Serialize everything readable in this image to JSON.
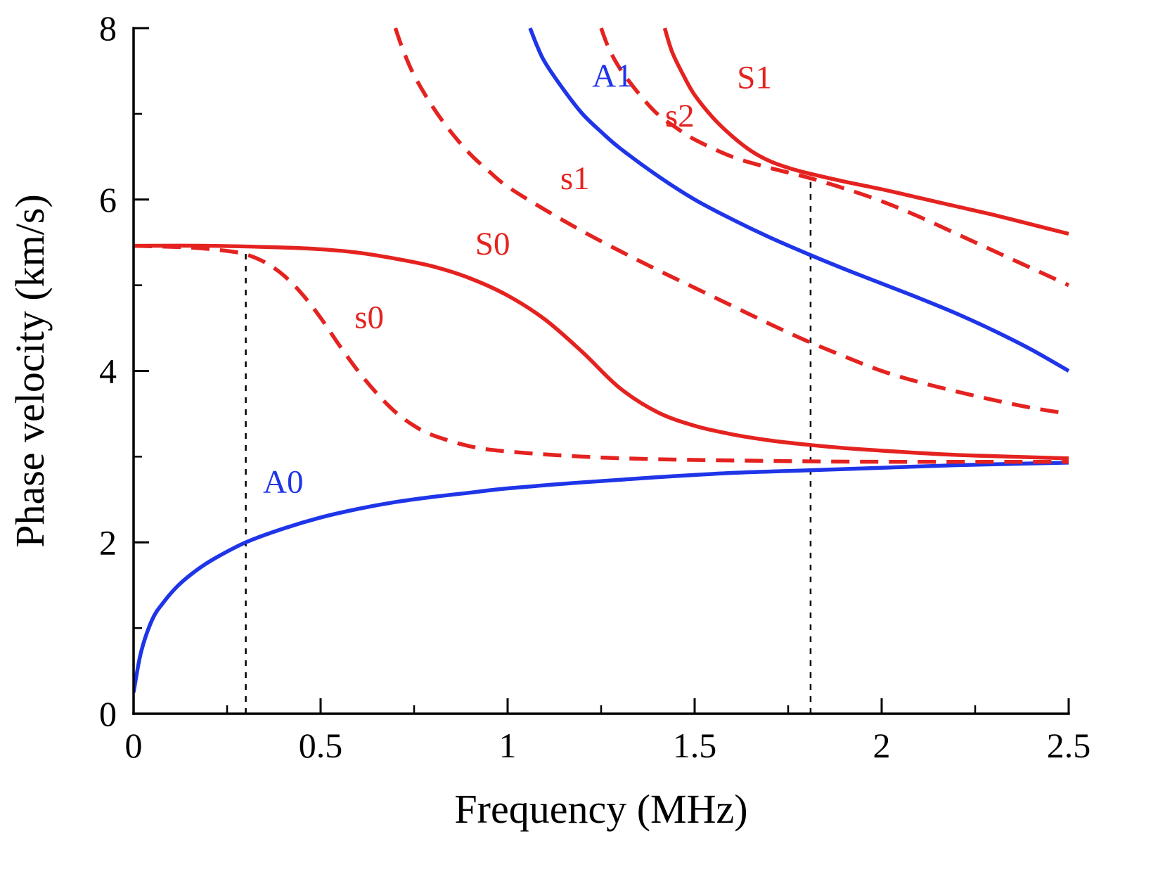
{
  "figure": {
    "background": "#ffffff"
  },
  "chart_data": {
    "type": "line",
    "title": "",
    "xlabel": "Frequency (MHz)",
    "ylabel": "Phase velocity (km/s)",
    "xlim": [
      0,
      2.5
    ],
    "ylim": [
      0,
      8
    ],
    "grid": false,
    "legend": "none (inline curve labels)",
    "x_ticks": {
      "major": [
        0,
        0.5,
        1,
        1.5,
        2,
        2.5
      ],
      "labels": [
        "0",
        "0.5",
        "1",
        "1.5",
        "2",
        "2.5"
      ],
      "minor": [
        0.25,
        0.75,
        1.25,
        1.75,
        2.25
      ]
    },
    "y_ticks": {
      "major": [
        0,
        2,
        4,
        6,
        8
      ],
      "labels": [
        "0",
        "2",
        "4",
        "6",
        "8"
      ],
      "minor": [
        1,
        3,
        5,
        7
      ]
    },
    "colors": {
      "blue_mode": "#1f35e8",
      "red_mode": "#e42320",
      "axis": "#000000",
      "reference": "#000000"
    },
    "series": [
      {
        "name": "A0",
        "color": "#1f35e8",
        "style": "solid",
        "points": [
          [
            0,
            0.25
          ],
          [
            0.02,
            0.72
          ],
          [
            0.05,
            1.1
          ],
          [
            0.08,
            1.3
          ],
          [
            0.12,
            1.5
          ],
          [
            0.17,
            1.68
          ],
          [
            0.22,
            1.82
          ],
          [
            0.3,
            2.0
          ],
          [
            0.4,
            2.16
          ],
          [
            0.5,
            2.29
          ],
          [
            0.6,
            2.39
          ],
          [
            0.7,
            2.47
          ],
          [
            0.8,
            2.53
          ],
          [
            0.9,
            2.58
          ],
          [
            1.0,
            2.63
          ],
          [
            1.2,
            2.7
          ],
          [
            1.4,
            2.76
          ],
          [
            1.6,
            2.81
          ],
          [
            1.8,
            2.84
          ],
          [
            2.0,
            2.87
          ],
          [
            2.2,
            2.9
          ],
          [
            2.5,
            2.93
          ]
        ]
      },
      {
        "name": "A1",
        "color": "#1f35e8",
        "style": "solid",
        "points": [
          [
            1.06,
            8.0
          ],
          [
            1.08,
            7.78
          ],
          [
            1.1,
            7.6
          ],
          [
            1.15,
            7.28
          ],
          [
            1.2,
            7.0
          ],
          [
            1.25,
            6.79
          ],
          [
            1.3,
            6.6
          ],
          [
            1.4,
            6.28
          ],
          [
            1.5,
            6.0
          ],
          [
            1.6,
            5.77
          ],
          [
            1.7,
            5.56
          ],
          [
            1.8,
            5.37
          ],
          [
            1.9,
            5.19
          ],
          [
            2.0,
            5.02
          ],
          [
            2.1,
            4.85
          ],
          [
            2.2,
            4.67
          ],
          [
            2.3,
            4.47
          ],
          [
            2.4,
            4.25
          ],
          [
            2.5,
            4.0
          ]
        ]
      },
      {
        "name": "S0",
        "color": "#e42320",
        "style": "solid",
        "points": [
          [
            0,
            5.46
          ],
          [
            0.2,
            5.46
          ],
          [
            0.4,
            5.44
          ],
          [
            0.5,
            5.42
          ],
          [
            0.6,
            5.38
          ],
          [
            0.7,
            5.31
          ],
          [
            0.8,
            5.22
          ],
          [
            0.9,
            5.08
          ],
          [
            1.0,
            4.88
          ],
          [
            1.1,
            4.6
          ],
          [
            1.2,
            4.22
          ],
          [
            1.3,
            3.8
          ],
          [
            1.4,
            3.52
          ],
          [
            1.5,
            3.36
          ],
          [
            1.6,
            3.26
          ],
          [
            1.7,
            3.19
          ],
          [
            1.8,
            3.14
          ],
          [
            1.9,
            3.1
          ],
          [
            2.0,
            3.07
          ],
          [
            2.2,
            3.02
          ],
          [
            2.5,
            2.98
          ]
        ]
      },
      {
        "name": "S1",
        "color": "#e42320",
        "style": "solid",
        "points": [
          [
            1.42,
            8.0
          ],
          [
            1.44,
            7.72
          ],
          [
            1.47,
            7.45
          ],
          [
            1.5,
            7.22
          ],
          [
            1.55,
            6.95
          ],
          [
            1.6,
            6.74
          ],
          [
            1.65,
            6.57
          ],
          [
            1.7,
            6.45
          ],
          [
            1.75,
            6.37
          ],
          [
            1.8,
            6.31
          ],
          [
            1.9,
            6.21
          ],
          [
            2.0,
            6.12
          ],
          [
            2.1,
            6.02
          ],
          [
            2.2,
            5.92
          ],
          [
            2.3,
            5.82
          ],
          [
            2.4,
            5.71
          ],
          [
            2.5,
            5.6
          ]
        ]
      },
      {
        "name": "s0",
        "color": "#e42320",
        "style": "dashed",
        "points": [
          [
            0,
            5.46
          ],
          [
            0.15,
            5.44
          ],
          [
            0.25,
            5.4
          ],
          [
            0.3,
            5.36
          ],
          [
            0.35,
            5.27
          ],
          [
            0.4,
            5.12
          ],
          [
            0.45,
            4.9
          ],
          [
            0.5,
            4.62
          ],
          [
            0.55,
            4.3
          ],
          [
            0.6,
            4.0
          ],
          [
            0.65,
            3.74
          ],
          [
            0.7,
            3.52
          ],
          [
            0.75,
            3.36
          ],
          [
            0.8,
            3.25
          ],
          [
            0.9,
            3.12
          ],
          [
            1.0,
            3.06
          ],
          [
            1.2,
            3.0
          ],
          [
            1.4,
            2.97
          ],
          [
            1.7,
            2.95
          ],
          [
            2.0,
            2.94
          ],
          [
            2.5,
            2.94
          ]
        ]
      },
      {
        "name": "s1",
        "color": "#e42320",
        "style": "dashed",
        "points": [
          [
            0.7,
            8.0
          ],
          [
            0.72,
            7.75
          ],
          [
            0.75,
            7.45
          ],
          [
            0.8,
            7.08
          ],
          [
            0.85,
            6.78
          ],
          [
            0.9,
            6.53
          ],
          [
            0.95,
            6.33
          ],
          [
            1.0,
            6.15
          ],
          [
            1.1,
            5.88
          ],
          [
            1.2,
            5.63
          ],
          [
            1.3,
            5.4
          ],
          [
            1.4,
            5.18
          ],
          [
            1.5,
            4.97
          ],
          [
            1.6,
            4.76
          ],
          [
            1.7,
            4.55
          ],
          [
            1.8,
            4.35
          ],
          [
            1.9,
            4.17
          ],
          [
            2.0,
            4.0
          ],
          [
            2.1,
            3.87
          ],
          [
            2.2,
            3.76
          ],
          [
            2.3,
            3.66
          ],
          [
            2.4,
            3.57
          ],
          [
            2.5,
            3.5
          ]
        ]
      },
      {
        "name": "s2",
        "color": "#e42320",
        "style": "dashed",
        "points": [
          [
            1.25,
            8.0
          ],
          [
            1.27,
            7.77
          ],
          [
            1.3,
            7.53
          ],
          [
            1.35,
            7.24
          ],
          [
            1.4,
            7.0
          ],
          [
            1.45,
            6.84
          ],
          [
            1.5,
            6.7
          ],
          [
            1.6,
            6.5
          ],
          [
            1.7,
            6.37
          ],
          [
            1.8,
            6.26
          ],
          [
            1.9,
            6.13
          ],
          [
            2.0,
            5.98
          ],
          [
            2.1,
            5.8
          ],
          [
            2.2,
            5.6
          ],
          [
            2.3,
            5.4
          ],
          [
            2.4,
            5.2
          ],
          [
            2.5,
            5.0
          ]
        ]
      }
    ],
    "reference_lines": [
      {
        "x": 0.3,
        "y_from": 0,
        "y_to": 5.4,
        "style": "dashed",
        "color": "#000000"
      },
      {
        "x": 1.81,
        "y_from": 0,
        "y_to": 6.3,
        "style": "dashed",
        "color": "#000000"
      }
    ],
    "annotations": [
      {
        "text": "A1",
        "x": 1.28,
        "y": 7.32,
        "color": "#1f35e8"
      },
      {
        "text": "S1",
        "x": 1.66,
        "y": 7.3,
        "color": "#e42320"
      },
      {
        "text": "s2",
        "x": 1.46,
        "y": 6.85,
        "color": "#e42320"
      },
      {
        "text": "s1",
        "x": 1.18,
        "y": 6.12,
        "color": "#e42320"
      },
      {
        "text": "S0",
        "x": 0.96,
        "y": 5.36,
        "color": "#e42320"
      },
      {
        "text": "s0",
        "x": 0.63,
        "y": 4.5,
        "color": "#e42320"
      },
      {
        "text": "A0",
        "x": 0.4,
        "y": 2.58,
        "color": "#1f35e8"
      }
    ]
  }
}
